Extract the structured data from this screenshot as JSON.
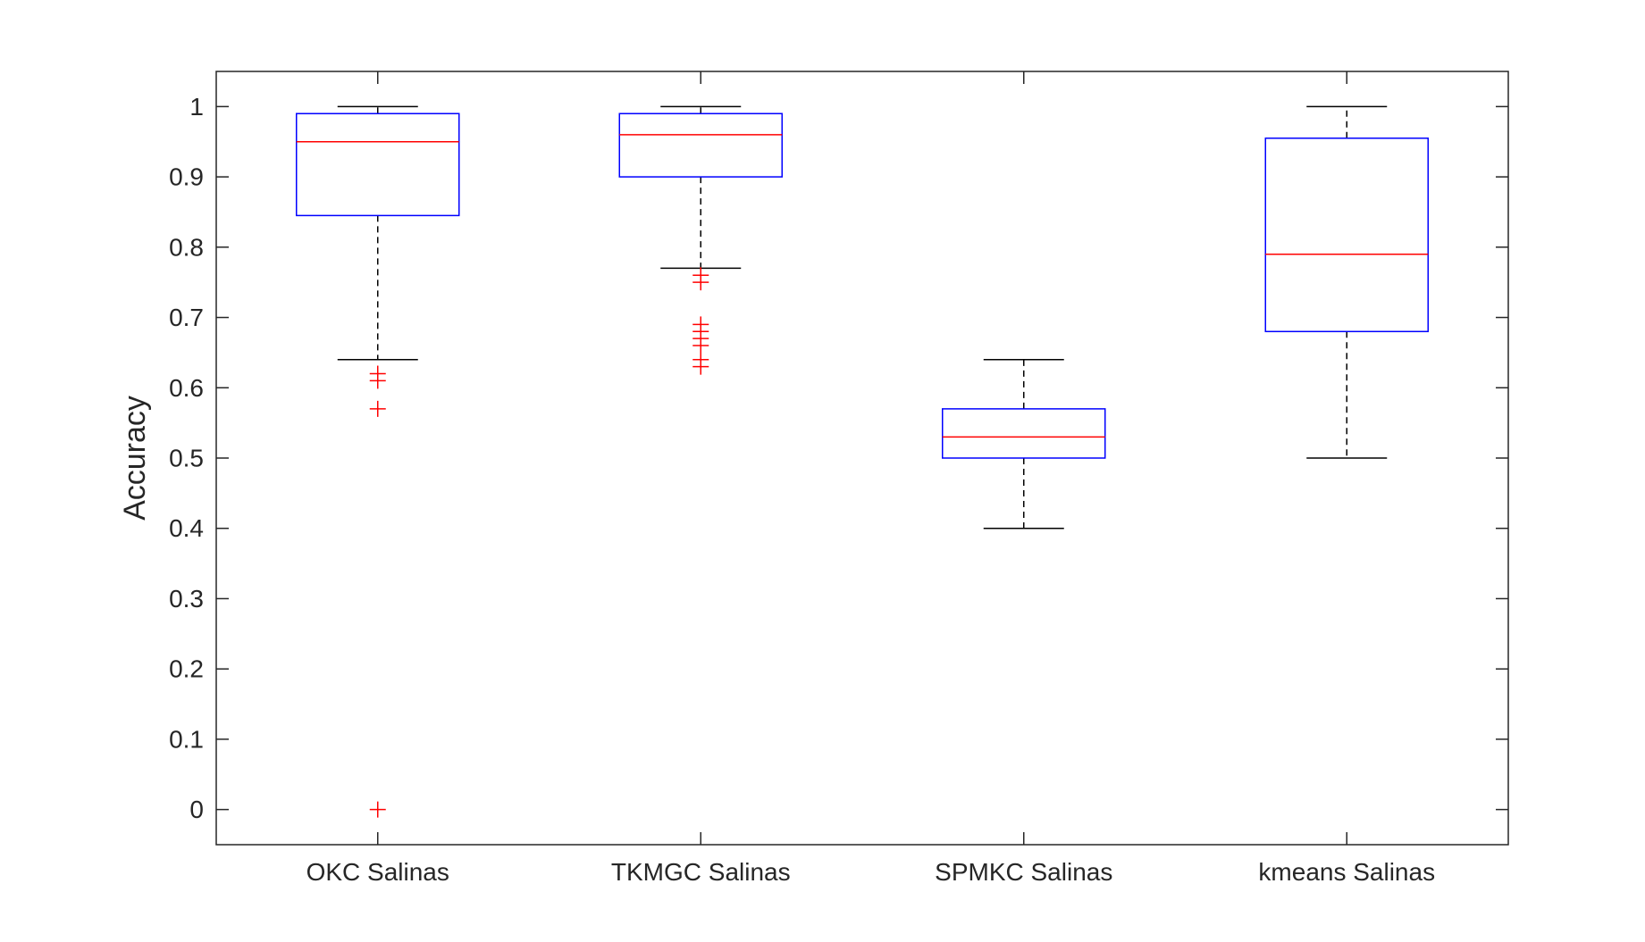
{
  "chart_data": {
    "type": "boxplot",
    "title": "",
    "xlabel": "",
    "ylabel": "Accuracy",
    "ylim": [
      -0.05,
      1.05
    ],
    "yticks": [
      0,
      0.1,
      0.2,
      0.3,
      0.4,
      0.5,
      0.6,
      0.7,
      0.8,
      0.9,
      1
    ],
    "ytick_labels": [
      "0",
      "0.1",
      "0.2",
      "0.3",
      "0.4",
      "0.5",
      "0.6",
      "0.7",
      "0.8",
      "0.9",
      "1"
    ],
    "grid": false,
    "categories": [
      "OKC Salinas",
      "TKMGC Salinas",
      "SPMKC Salinas",
      "kmeans Salinas"
    ],
    "boxes": [
      {
        "whisker_low": 0.64,
        "q1": 0.845,
        "median": 0.95,
        "q3": 0.99,
        "whisker_high": 1.0,
        "outliers": [
          0.62,
          0.61,
          0.57,
          0.0
        ]
      },
      {
        "whisker_low": 0.77,
        "q1": 0.9,
        "median": 0.96,
        "q3": 0.99,
        "whisker_high": 1.0,
        "outliers": [
          0.76,
          0.75,
          0.69,
          0.68,
          0.67,
          0.66,
          0.64,
          0.63
        ]
      },
      {
        "whisker_low": 0.4,
        "q1": 0.5,
        "median": 0.53,
        "q3": 0.57,
        "whisker_high": 0.64,
        "outliers": []
      },
      {
        "whisker_low": 0.5,
        "q1": 0.68,
        "median": 0.79,
        "q3": 0.955,
        "whisker_high": 1.0,
        "outliers": []
      }
    ],
    "colors": {
      "box": "#0000ff",
      "median": "#ff0000",
      "whisker": "#000000",
      "outlier": "#ff0000",
      "axis": "#262626"
    }
  }
}
